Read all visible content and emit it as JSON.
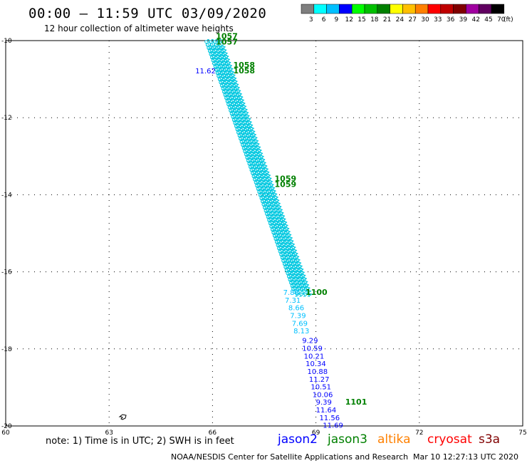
{
  "header": {
    "title": "00:00 — 11:59 UTC 03/09/2020",
    "subtitle": "12 hour collection of altimeter wave heights"
  },
  "legend_scale": {
    "labels": [
      "3",
      "6",
      "9",
      "12",
      "15",
      "18",
      "21",
      "24",
      "27",
      "30",
      "33",
      "36",
      "39",
      "42",
      "45",
      "70"
    ],
    "unit": "(ft)",
    "colors": [
      "#7f7f7f",
      "#00ffff",
      "#00c0ff",
      "#0000ff",
      "#00ff00",
      "#00c000",
      "#008000",
      "#ffff00",
      "#ffc000",
      "#ff8000",
      "#ff0000",
      "#c00000",
      "#800000",
      "#a000a0",
      "#600060",
      "#000000"
    ]
  },
  "axes": {
    "x_ticks": [
      "60",
      "63",
      "66",
      "69",
      "72",
      "75"
    ],
    "y_ticks": [
      "-10",
      "-12",
      "-14",
      "-16",
      "-18",
      "-20"
    ],
    "x_range": [
      60,
      75
    ],
    "y_range": [
      -20,
      -10
    ]
  },
  "tracks": {
    "time_labels": [
      {
        "text": "1057",
        "lon": 66.1,
        "lat": -9.95,
        "color": "#008000"
      },
      {
        "text": "1057",
        "lon": 66.1,
        "lat": -10.1,
        "color": "#008000"
      },
      {
        "text": "1058",
        "lon": 66.6,
        "lat": -10.7,
        "color": "#008000"
      },
      {
        "text": "1058",
        "lon": 66.6,
        "lat": -10.85,
        "color": "#008000"
      },
      {
        "text": "1059",
        "lon": 67.8,
        "lat": -13.65,
        "color": "#008000"
      },
      {
        "text": "1059",
        "lon": 67.8,
        "lat": -13.8,
        "color": "#008000"
      },
      {
        "text": "1100",
        "lon": 68.7,
        "lat": -16.6,
        "color": "#008000"
      },
      {
        "text": "1101",
        "lon": 69.85,
        "lat": -19.45,
        "color": "#008000"
      }
    ],
    "swh_labels": [
      {
        "text": "11.62",
        "lon": 65.5,
        "lat": -10.85,
        "color": "#0000ff"
      },
      {
        "text": "7.88",
        "lon": 68.05,
        "lat": -16.6,
        "color": "#00c0ff"
      },
      {
        "text": "7.31",
        "lon": 68.1,
        "lat": -16.8,
        "color": "#00c0ff"
      },
      {
        "text": "8.66",
        "lon": 68.2,
        "lat": -17.0,
        "color": "#00c0ff"
      },
      {
        "text": "7.39",
        "lon": 68.25,
        "lat": -17.2,
        "color": "#00c0ff"
      },
      {
        "text": "7.69",
        "lon": 68.3,
        "lat": -17.4,
        "color": "#00c0ff"
      },
      {
        "text": "8.13",
        "lon": 68.35,
        "lat": -17.6,
        "color": "#00c0ff"
      },
      {
        "text": "9.29",
        "lon": 68.6,
        "lat": -17.85,
        "color": "#0000ff"
      },
      {
        "text": "10.59",
        "lon": 68.6,
        "lat": -18.05,
        "color": "#0000ff"
      },
      {
        "text": "10.21",
        "lon": 68.65,
        "lat": -18.25,
        "color": "#0000ff"
      },
      {
        "text": "10.34",
        "lon": 68.7,
        "lat": -18.45,
        "color": "#0000ff"
      },
      {
        "text": "10.88",
        "lon": 68.75,
        "lat": -18.65,
        "color": "#0000ff"
      },
      {
        "text": "11.27",
        "lon": 68.8,
        "lat": -18.85,
        "color": "#0000ff"
      },
      {
        "text": "10.51",
        "lon": 68.85,
        "lat": -19.05,
        "color": "#0000ff"
      },
      {
        "text": "10.06",
        "lon": 68.9,
        "lat": -19.25,
        "color": "#0000ff"
      },
      {
        "text": "9.39",
        "lon": 69.0,
        "lat": -19.45,
        "color": "#0000ff"
      },
      {
        "text": "11.64",
        "lon": 69.0,
        "lat": -19.65,
        "color": "#0000ff"
      },
      {
        "text": "11.56",
        "lon": 69.1,
        "lat": -19.85,
        "color": "#0000ff"
      },
      {
        "text": "11.69",
        "lon": 69.2,
        "lat": -20.05,
        "color": "#0000ff"
      }
    ]
  },
  "footer": {
    "note": "note: 1) Time is in UTC; 2) SWH is in feet",
    "missions": [
      {
        "name": "jason2",
        "color": "#0000ff"
      },
      {
        "name": "jason3",
        "color": "#008000"
      },
      {
        "name": "altika",
        "color": "#ff8000"
      },
      {
        "name": "cryosat",
        "color": "#ff0000"
      },
      {
        "name": "s3a",
        "color": "#800000"
      }
    ],
    "credit": "NOAA/NESDIS Center for Satellite Applications and Research",
    "timestamp": "Mar 10 12:27:13 UTC 2020"
  }
}
